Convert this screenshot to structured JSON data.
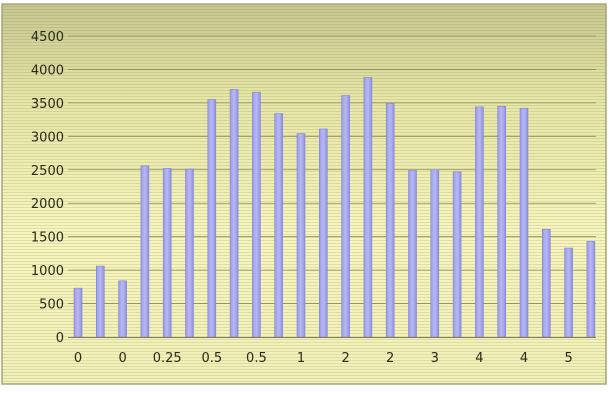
{
  "chart_data": {
    "type": "bar",
    "categories": [
      "0",
      "",
      "0",
      "",
      "0.25",
      "",
      "0.5",
      "",
      "0.5",
      "",
      "1",
      "",
      "2",
      "",
      "2",
      "",
      "3",
      "",
      "4",
      "",
      "4",
      "",
      "5",
      ""
    ],
    "values": [
      730,
      1060,
      840,
      2560,
      2520,
      2510,
      3550,
      3700,
      3660,
      3340,
      3040,
      3110,
      3610,
      3880,
      3490,
      2490,
      2500,
      2470,
      3440,
      3450,
      3420,
      1610,
      1330,
      1430
    ],
    "yticks": [
      "0",
      "500",
      "1000",
      "1500",
      "2000",
      "2500",
      "3000",
      "3500",
      "4000",
      "4500"
    ],
    "ylim": [
      0,
      4500
    ],
    "title": "",
    "xlabel": "",
    "ylabel": "",
    "grid": true,
    "colors": {
      "bar": "#a9a9f2",
      "bar_edge": "#8383d6",
      "background_top": "#cfcf9a",
      "background_mid": "#f3f3b8",
      "background_bottom": "#f7f7c8",
      "frame": "#9c9c6a"
    }
  }
}
